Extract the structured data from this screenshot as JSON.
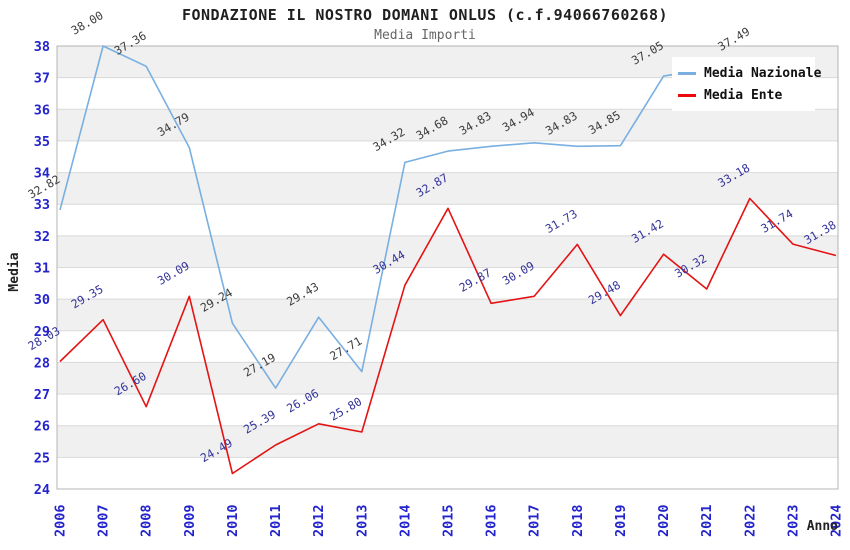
{
  "header": {
    "title": "FONDAZIONE IL NOSTRO DOMANI ONLUS (c.f.94066760268)",
    "subtitle": "Media Importi"
  },
  "axes": {
    "y_label": "Media",
    "x_label": "Anno",
    "tick_color": "#2424cd",
    "y_ticks": [
      24,
      25,
      26,
      27,
      28,
      29,
      30,
      31,
      32,
      33,
      34,
      35,
      36,
      37,
      38
    ],
    "x_ticks": [
      "2006",
      "2007",
      "2008",
      "2009",
      "2010",
      "2011",
      "2012",
      "2013",
      "2014",
      "2015",
      "2016",
      "2017",
      "2018",
      "2019",
      "2020",
      "2021",
      "2022",
      "2023",
      "2024"
    ]
  },
  "legend": {
    "items": [
      {
        "label": "Media Nazionale",
        "color": "#79afe1"
      },
      {
        "label": "Media Ente",
        "color": "#ee0a0a"
      }
    ]
  },
  "chart_data": {
    "type": "line",
    "title": "FONDAZIONE IL NOSTRO DOMANI ONLUS (c.f.94066760268)",
    "subtitle": "Media Importi",
    "xlabel": "Anno",
    "ylabel": "Media",
    "x": [
      2006,
      2007,
      2008,
      2009,
      2010,
      2011,
      2012,
      2013,
      2014,
      2015,
      2016,
      2017,
      2018,
      2019,
      2020,
      2021,
      2022,
      2023,
      2024
    ],
    "ylim": [
      24,
      38
    ],
    "grid": "horizontal-bands",
    "legend_position": "top-right",
    "series": [
      {
        "name": "Media Nazionale",
        "color": "#79afe1",
        "label_color": "#3c3c3c",
        "values": [
          32.82,
          38.0,
          37.36,
          34.79,
          29.24,
          27.19,
          29.43,
          27.71,
          34.32,
          34.68,
          34.83,
          34.94,
          34.83,
          34.85,
          37.05,
          null,
          37.49,
          null,
          null
        ]
      },
      {
        "name": "Media Ente",
        "color": "#e41414",
        "label_color": "#333399",
        "values": [
          28.03,
          29.35,
          26.6,
          30.09,
          24.49,
          25.39,
          26.06,
          25.8,
          30.44,
          32.87,
          29.87,
          30.09,
          31.73,
          29.48,
          31.42,
          30.32,
          33.18,
          31.74,
          31.38
        ]
      }
    ]
  }
}
